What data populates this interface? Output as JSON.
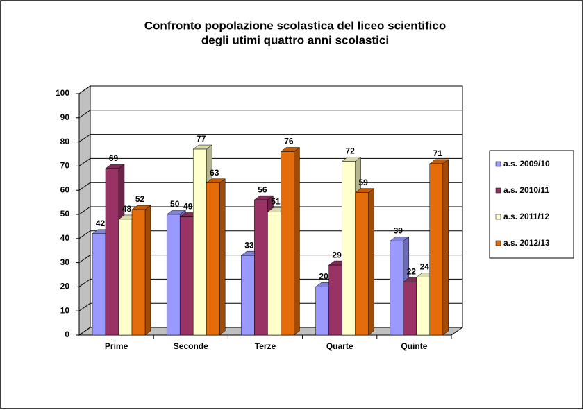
{
  "chart_data": {
    "type": "bar3d",
    "title": [
      "Confronto popolazione scolastica  del liceo scientifico",
      "degli utimi quattro anni  scolastici"
    ],
    "categories": [
      "Prime",
      "Seconde",
      "Terze",
      "Quarte",
      "Quinte"
    ],
    "series": [
      {
        "name": "a.s. 2009/10",
        "color": "#9999ff",
        "values": [
          42,
          50,
          33,
          20,
          39
        ]
      },
      {
        "name": "a.s. 2010/11",
        "color": "#993366",
        "values": [
          69,
          49,
          56,
          29,
          22
        ]
      },
      {
        "name": "a.s. 2011/12",
        "color": "#ffffcc",
        "values": [
          48,
          77,
          51,
          72,
          24
        ]
      },
      {
        "name": "a.s. 2012/13",
        "color": "#e46c0a",
        "values": [
          52,
          63,
          76,
          59,
          71
        ]
      }
    ],
    "ylim": [
      0,
      100
    ],
    "yticks": [
      0,
      10,
      20,
      30,
      40,
      50,
      60,
      70,
      80,
      90,
      100
    ],
    "grid": true,
    "legend": "right"
  }
}
